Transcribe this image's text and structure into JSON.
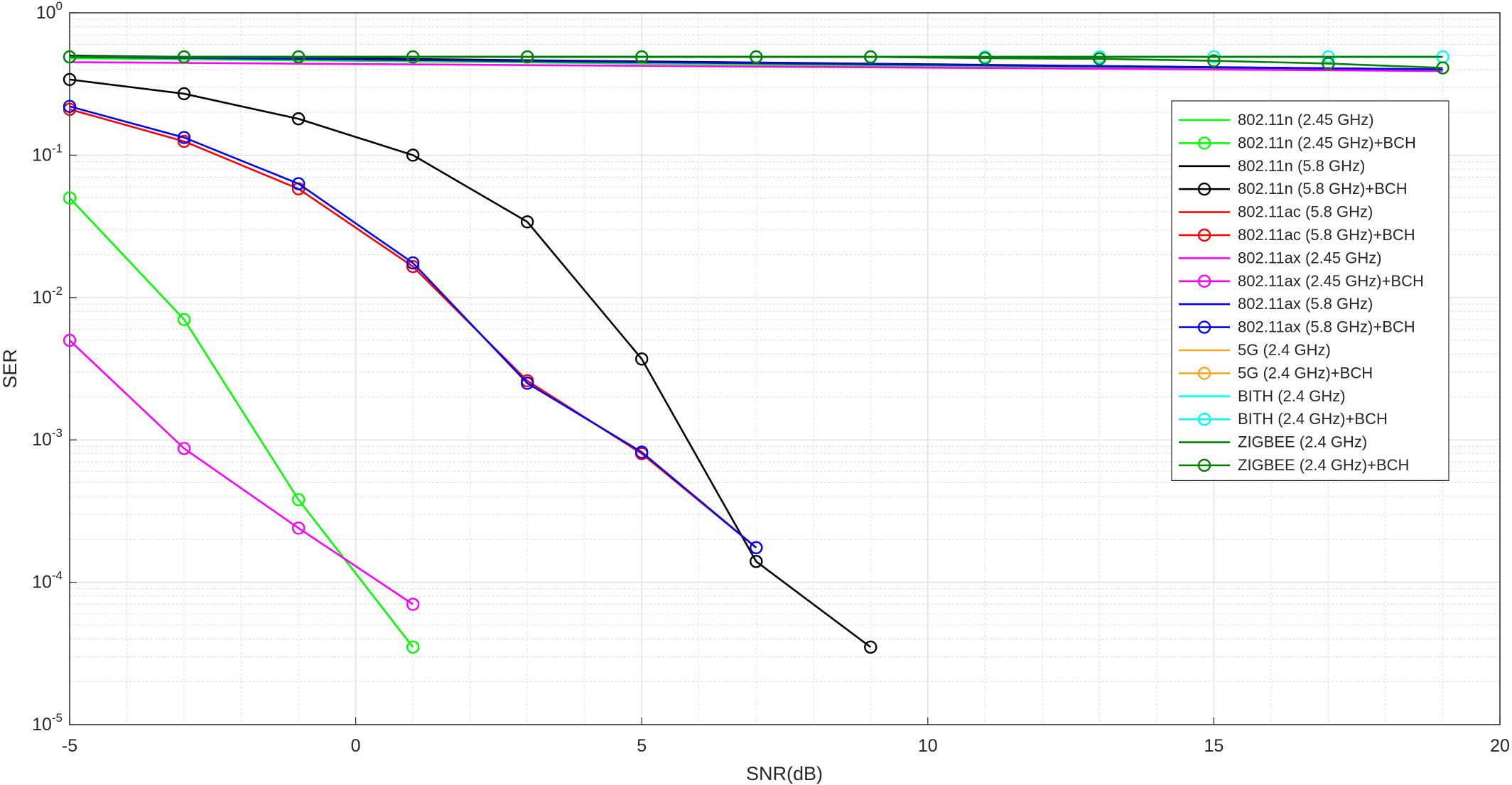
{
  "chart_data": {
    "type": "line",
    "title": "",
    "xlabel": "SNR(dB)",
    "ylabel": "SER",
    "xlim": [
      -5,
      20
    ],
    "ylim": [
      1e-05,
      1
    ],
    "yscale": "log",
    "grid": true,
    "minor_grid": true,
    "legend_position": "right",
    "x_ticks": [
      -5,
      0,
      5,
      10,
      15,
      20
    ],
    "x_tick_labels": [
      "-5",
      "0",
      "5",
      "10",
      "15",
      "20"
    ],
    "y_ticks": [
      1e-05,
      0.0001,
      0.001,
      0.01,
      0.1,
      1
    ],
    "y_tick_labels": [
      {
        "base": "10",
        "exp": "-5"
      },
      {
        "base": "10",
        "exp": "-4"
      },
      {
        "base": "10",
        "exp": "-3"
      },
      {
        "base": "10",
        "exp": "-2"
      },
      {
        "base": "10",
        "exp": "-1"
      },
      {
        "base": "10",
        "exp": "0"
      }
    ],
    "series": [
      {
        "name": "802.11n (2.45 GHz)",
        "color": "#00ff00",
        "marker": "none",
        "x": [
          -5,
          19
        ],
        "y": [
          0.48,
          0.39
        ]
      },
      {
        "name": "802.11n (2.45 GHz)+BCH",
        "color": "#00ff00",
        "marker": "circle",
        "x": [
          -5,
          -3,
          -1,
          1
        ],
        "y": [
          0.05,
          0.007,
          0.00038,
          3.5e-05
        ]
      },
      {
        "name": "802.11n (5.8 GHz)",
        "color": "#000000",
        "marker": "none",
        "x": [
          -5,
          19
        ],
        "y": [
          0.5,
          0.4
        ]
      },
      {
        "name": "802.11n (5.8 GHz)+BCH",
        "color": "#000000",
        "marker": "circle",
        "x": [
          -5,
          -3,
          -1,
          1,
          3,
          5,
          7,
          9
        ],
        "y": [
          0.34,
          0.27,
          0.18,
          0.1,
          0.034,
          0.0037,
          0.00014,
          3.5e-05
        ]
      },
      {
        "name": "802.11ac (5.8 GHz)",
        "color": "#ff0000",
        "marker": "none",
        "x": [
          -5,
          19
        ],
        "y": [
          0.49,
          0.4
        ]
      },
      {
        "name": "802.11ac (5.8 GHz)+BCH",
        "color": "#ff0000",
        "marker": "circle",
        "x": [
          -5,
          -3,
          -1,
          1,
          3,
          5,
          7
        ],
        "y": [
          0.21,
          0.125,
          0.058,
          0.0165,
          0.0026,
          0.0008,
          0.000175
        ]
      },
      {
        "name": "802.11ax (2.45 GHz)",
        "color": "#ff00ff",
        "marker": "none",
        "x": [
          -5,
          19
        ],
        "y": [
          0.45,
          0.39
        ]
      },
      {
        "name": "802.11ax (2.45 GHz)+BCH",
        "color": "#ff00ff",
        "marker": "circle",
        "x": [
          -5,
          -3,
          -1,
          1
        ],
        "y": [
          0.005,
          0.00087,
          0.00024,
          7e-05
        ]
      },
      {
        "name": "802.11ax (5.8 GHz)",
        "color": "#0000ff",
        "marker": "none",
        "x": [
          -5,
          19
        ],
        "y": [
          0.49,
          0.4
        ]
      },
      {
        "name": "802.11ax (5.8 GHz)+BCH",
        "color": "#0000ff",
        "marker": "circle",
        "x": [
          -5,
          -3,
          -1,
          1,
          3,
          5,
          7
        ],
        "y": [
          0.22,
          0.133,
          0.063,
          0.0175,
          0.0025,
          0.00082,
          0.000175
        ]
      },
      {
        "name": "5G (2.4 GHz)",
        "color": "#f5a623",
        "marker": "none",
        "x": [
          -5,
          19
        ],
        "y": [
          0.49,
          0.49
        ]
      },
      {
        "name": "5G (2.4 GHz)+BCH",
        "color": "#f5a623",
        "marker": "circle",
        "x": [
          -5,
          -3,
          -1,
          1,
          3,
          5,
          7,
          9,
          11,
          13,
          15,
          17,
          19
        ],
        "y": [
          0.49,
          0.49,
          0.49,
          0.49,
          0.49,
          0.49,
          0.49,
          0.49,
          0.49,
          0.49,
          0.49,
          0.49,
          0.49
        ]
      },
      {
        "name": "BITH (2.4 GHz)",
        "color": "#00ffff",
        "marker": "none",
        "x": [
          -5,
          19
        ],
        "y": [
          0.49,
          0.49
        ]
      },
      {
        "name": "BITH (2.4 GHz)+BCH",
        "color": "#00ffff",
        "marker": "circle",
        "x": [
          -5,
          -3,
          -1,
          1,
          3,
          5,
          7,
          9,
          11,
          13,
          15,
          17,
          19
        ],
        "y": [
          0.49,
          0.49,
          0.49,
          0.49,
          0.49,
          0.49,
          0.49,
          0.49,
          0.49,
          0.49,
          0.49,
          0.49,
          0.49
        ]
      },
      {
        "name": "ZIGBEE (2.4 GHz)",
        "color": "#008000",
        "marker": "none",
        "x": [
          -5,
          19
        ],
        "y": [
          0.49,
          0.49
        ]
      },
      {
        "name": "ZIGBEE (2.4 GHz)+BCH",
        "color": "#008000",
        "marker": "circle",
        "x": [
          -5,
          -3,
          -1,
          1,
          3,
          5,
          7,
          9,
          11,
          13,
          15,
          17,
          19
        ],
        "y": [
          0.49,
          0.49,
          0.49,
          0.49,
          0.49,
          0.49,
          0.49,
          0.49,
          0.48,
          0.475,
          0.46,
          0.44,
          0.41
        ]
      }
    ]
  }
}
